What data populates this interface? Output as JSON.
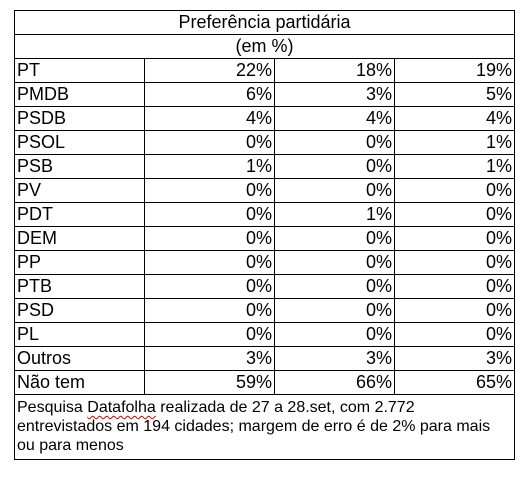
{
  "table": {
    "title": "Preferência partidária",
    "subtitle": "(em %)",
    "rows": [
      {
        "party": "PT",
        "v1": "22%",
        "v2": "18%",
        "v3": "19%"
      },
      {
        "party": "PMDB",
        "v1": "6%",
        "v2": "3%",
        "v3": "5%"
      },
      {
        "party": "PSDB",
        "v1": "4%",
        "v2": "4%",
        "v3": "4%"
      },
      {
        "party": "PSOL",
        "v1": "0%",
        "v2": "0%",
        "v3": "1%"
      },
      {
        "party": "PSB",
        "v1": "1%",
        "v2": "0%",
        "v3": "1%"
      },
      {
        "party": "PV",
        "v1": "0%",
        "v2": "0%",
        "v3": "0%"
      },
      {
        "party": "PDT",
        "v1": "0%",
        "v2": "1%",
        "v3": "0%"
      },
      {
        "party": "DEM",
        "v1": "0%",
        "v2": "0%",
        "v3": "0%"
      },
      {
        "party": "PP",
        "v1": "0%",
        "v2": "0%",
        "v3": "0%"
      },
      {
        "party": "PTB",
        "v1": "0%",
        "v2": "0%",
        "v3": "0%"
      },
      {
        "party": "PSD",
        "v1": "0%",
        "v2": "0%",
        "v3": "0%"
      },
      {
        "party": "PL",
        "v1": "0%",
        "v2": "0%",
        "v3": "0%"
      },
      {
        "party": "Outros",
        "v1": "3%",
        "v2": "3%",
        "v3": "3%"
      },
      {
        "party": "Não tem",
        "v1": "59%",
        "v2": "66%",
        "v3": "65%"
      }
    ],
    "note": {
      "before": "Pesquisa ",
      "flagged_word": "Datafolha",
      "after": " realizada de 27 a 28.set, com 2.772 entrevistados em 194 cidades; margem de erro é de 2% para mais ou para menos"
    }
  },
  "colors": {
    "border": "#000000",
    "text": "#000000",
    "spellcheck_underline": "#d40000"
  }
}
